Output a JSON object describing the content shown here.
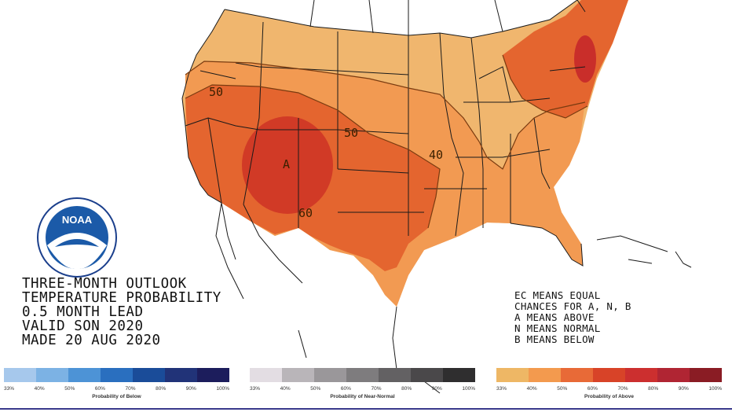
{
  "outlook_title": {
    "line1": "THREE-MONTH OUTLOOK",
    "line2": "TEMPERATURE PROBABILITY",
    "line3": "0.5 MONTH LEAD",
    "line4": "VALID SON 2020",
    "line5": "MADE 20 AUG 2020"
  },
  "key": {
    "line1": "EC MEANS EQUAL",
    "line2": "CHANCES FOR A, N, B",
    "line3": "A MEANS ABOVE",
    "line4": "N MEANS NORMAL",
    "line5": "B MEANS BELOW"
  },
  "map_labels": {
    "contour_50_west": "50",
    "contour_50_central": "50",
    "contour_40": "40",
    "contour_60": "60",
    "category_a": "A"
  },
  "logo": {
    "text": "NOAA",
    "icon": "noaa-logo-icon"
  },
  "legends": [
    {
      "name": "below",
      "caption": "Probability of Below",
      "ticks": [
        "33%",
        "40%",
        "50%",
        "60%",
        "70%",
        "80%",
        "90%",
        "100%"
      ],
      "colors": [
        "#a6c8ec",
        "#7cb2e4",
        "#4d93d6",
        "#2a6fbf",
        "#1a4c99",
        "#213378",
        "#1c1d5c"
      ]
    },
    {
      "name": "near-normal",
      "caption": "Probability of Near-Normal",
      "ticks": [
        "33%",
        "40%",
        "50%",
        "60%",
        "70%",
        "80%",
        "90%",
        "100%"
      ],
      "colors": [
        "#e3dde3",
        "#b9b5b9",
        "#9a979a",
        "#7e7c7e",
        "#636163",
        "#4a484a",
        "#2f2e2f"
      ]
    },
    {
      "name": "above",
      "caption": "Probability of Above",
      "ticks": [
        "33%",
        "40%",
        "50%",
        "60%",
        "70%",
        "80%",
        "90%",
        "100%"
      ],
      "colors": [
        "#eeb765",
        "#f39a4e",
        "#e86a37",
        "#d84328",
        "#cc2f2f",
        "#b02533",
        "#8a1c24"
      ]
    }
  ],
  "colors": {
    "above_33_40": "#f0b66e",
    "above_40_50": "#f29a52",
    "above_50_60": "#e4652f",
    "above_60_70": "#d13a26",
    "border": "#1a1a1a"
  }
}
